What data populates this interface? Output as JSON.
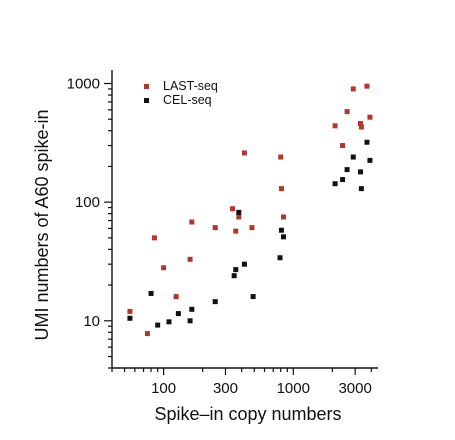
{
  "chart_data": {
    "type": "scatter",
    "xlabel": "Spike–in copy numbers",
    "ylabel": "UMI numbers of A60 spike-in",
    "xscale": "log",
    "yscale": "log",
    "xlim": [
      40,
      4500
    ],
    "ylim": [
      4,
      1300
    ],
    "x_ticks_major": [
      100,
      300,
      1000,
      3000
    ],
    "x_tick_labels": [
      "100",
      "300",
      "1000",
      "3000"
    ],
    "y_ticks_major": [
      10,
      100,
      1000
    ],
    "y_tick_labels": [
      "10",
      "100",
      "1000"
    ],
    "legend_position": "top-left",
    "grid": false,
    "series": [
      {
        "name": "LAST-seq",
        "color": "#b5352a",
        "points": [
          [
            55,
            12
          ],
          [
            75,
            7.8
          ],
          [
            85,
            50
          ],
          [
            100,
            28
          ],
          [
            125,
            16
          ],
          [
            160,
            33
          ],
          [
            165,
            68
          ],
          [
            250,
            61
          ],
          [
            340,
            88
          ],
          [
            360,
            57
          ],
          [
            380,
            75
          ],
          [
            420,
            260
          ],
          [
            480,
            61
          ],
          [
            800,
            240
          ],
          [
            810,
            130
          ],
          [
            840,
            75
          ],
          [
            2100,
            440
          ],
          [
            2400,
            300
          ],
          [
            2600,
            580
          ],
          [
            2900,
            900
          ],
          [
            3300,
            460
          ],
          [
            3350,
            430
          ],
          [
            3700,
            950
          ],
          [
            3900,
            520
          ]
        ]
      },
      {
        "name": "CEL-seq",
        "color": "#111111",
        "points": [
          [
            55,
            10.5
          ],
          [
            80,
            17
          ],
          [
            90,
            9.2
          ],
          [
            110,
            9.8
          ],
          [
            130,
            11.5
          ],
          [
            160,
            10
          ],
          [
            165,
            12.5
          ],
          [
            250,
            14.5
          ],
          [
            350,
            24
          ],
          [
            360,
            27
          ],
          [
            380,
            82
          ],
          [
            420,
            30
          ],
          [
            490,
            16
          ],
          [
            790,
            34
          ],
          [
            810,
            58
          ],
          [
            840,
            51
          ],
          [
            2100,
            143
          ],
          [
            2400,
            155
          ],
          [
            2600,
            188
          ],
          [
            2900,
            240
          ],
          [
            3300,
            180
          ],
          [
            3350,
            130
          ],
          [
            3700,
            320
          ],
          [
            3900,
            225
          ]
        ]
      }
    ]
  }
}
